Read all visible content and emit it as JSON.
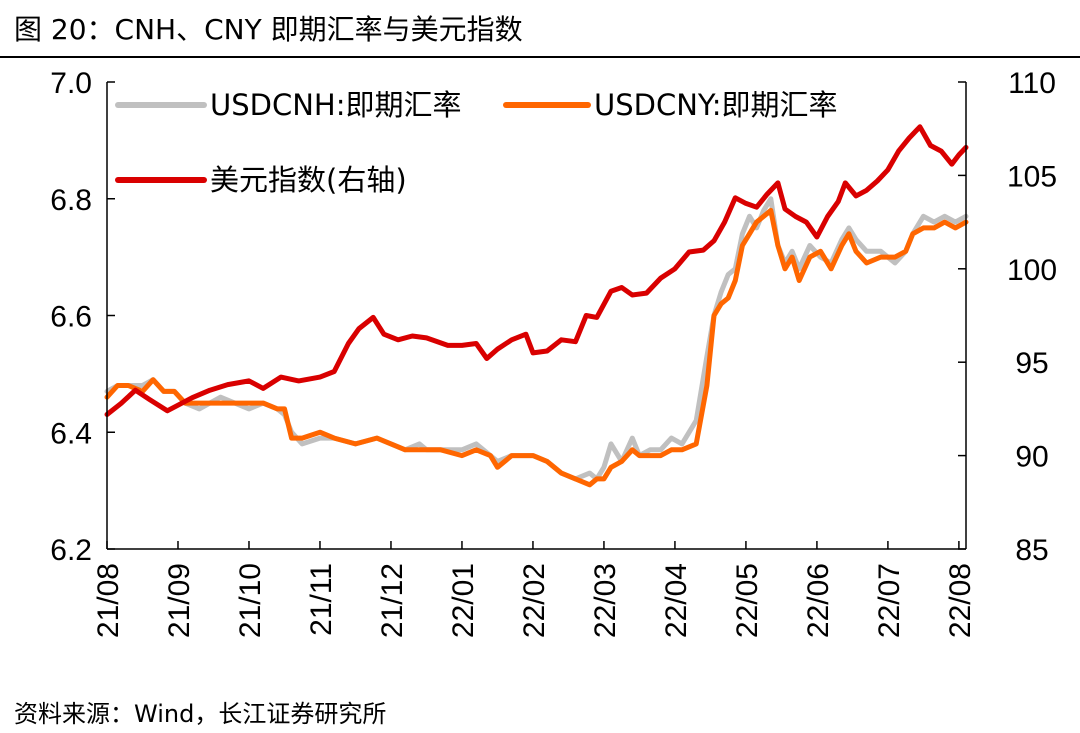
{
  "header": {
    "title": "图 20：CNH、CNY 即期汇率与美元指数"
  },
  "footer": {
    "source": "资料来源：Wind，长江证券研究所"
  },
  "colors": {
    "cnh": "#C0C0C0",
    "cny": "#FF6600",
    "dxy": "#D90000",
    "axis": "#000000"
  },
  "chart_data": {
    "type": "line",
    "title": "CNH、CNY 即期汇率与美元指数",
    "xlabel": "",
    "ylabel_left": "",
    "ylabel_right": "",
    "ylim_left": [
      6.2,
      7.0
    ],
    "ylim_right": [
      85,
      110
    ],
    "yticks_left": [
      "6.2",
      "6.4",
      "6.6",
      "6.8",
      "7.0"
    ],
    "yticks_right": [
      "85",
      "90",
      "95",
      "100",
      "105",
      "110"
    ],
    "x_range": [
      0,
      12.1
    ],
    "xtick_positions": [
      0,
      1,
      2,
      3,
      4,
      5,
      6,
      7,
      8,
      9,
      10,
      11,
      12
    ],
    "xtick_labels": [
      "21/08",
      "21/09",
      "21/10",
      "21/11",
      "21/12",
      "22/01",
      "22/02",
      "22/03",
      "22/04",
      "22/05",
      "22/06",
      "22/07",
      "22/08"
    ],
    "grid": false,
    "legend": "top-left",
    "series": [
      {
        "name": "USDCNH:即期汇率",
        "axis": "left",
        "color": "#C0C0C0",
        "x": [
          0,
          0.15,
          0.3,
          0.5,
          0.65,
          0.8,
          0.95,
          1.1,
          1.3,
          1.45,
          1.6,
          1.8,
          2.0,
          2.2,
          2.4,
          2.5,
          2.6,
          2.75,
          3.0,
          3.2,
          3.5,
          3.8,
          4.0,
          4.2,
          4.4,
          4.5,
          4.7,
          5.0,
          5.2,
          5.4,
          5.5,
          5.7,
          6.0,
          6.2,
          6.4,
          6.6,
          6.8,
          6.9,
          7.0,
          7.1,
          7.25,
          7.4,
          7.5,
          7.65,
          7.8,
          7.95,
          8.1,
          8.3,
          8.45,
          8.55,
          8.65,
          8.75,
          8.85,
          8.95,
          9.05,
          9.15,
          9.25,
          9.35,
          9.45,
          9.55,
          9.65,
          9.75,
          9.9,
          10.05,
          10.2,
          10.35,
          10.45,
          10.55,
          10.7,
          10.9,
          11.1,
          11.25,
          11.35,
          11.5,
          11.65,
          11.8,
          11.95,
          12.1
        ],
        "values": [
          6.47,
          6.48,
          6.48,
          6.48,
          6.49,
          6.47,
          6.47,
          6.45,
          6.44,
          6.45,
          6.46,
          6.45,
          6.44,
          6.45,
          6.44,
          6.43,
          6.4,
          6.38,
          6.39,
          6.39,
          6.38,
          6.39,
          6.38,
          6.37,
          6.38,
          6.37,
          6.37,
          6.37,
          6.38,
          6.36,
          6.35,
          6.36,
          6.36,
          6.35,
          6.33,
          6.32,
          6.33,
          6.32,
          6.34,
          6.38,
          6.35,
          6.39,
          6.36,
          6.37,
          6.37,
          6.39,
          6.38,
          6.42,
          6.53,
          6.6,
          6.64,
          6.67,
          6.68,
          6.74,
          6.77,
          6.75,
          6.78,
          6.8,
          6.72,
          6.69,
          6.71,
          6.68,
          6.72,
          6.7,
          6.69,
          6.73,
          6.75,
          6.73,
          6.71,
          6.71,
          6.69,
          6.71,
          6.74,
          6.77,
          6.76,
          6.77,
          6.76,
          6.77
        ]
      },
      {
        "name": "USDCNY:即期汇率",
        "axis": "left",
        "color": "#FF6600",
        "x": [
          0,
          0.15,
          0.3,
          0.5,
          0.65,
          0.8,
          0.95,
          1.1,
          1.3,
          1.45,
          1.6,
          1.8,
          2.0,
          2.2,
          2.4,
          2.5,
          2.6,
          2.75,
          3.0,
          3.2,
          3.5,
          3.8,
          4.0,
          4.2,
          4.4,
          4.5,
          4.7,
          5.0,
          5.2,
          5.4,
          5.5,
          5.7,
          6.0,
          6.2,
          6.4,
          6.6,
          6.8,
          6.9,
          7.0,
          7.1,
          7.25,
          7.4,
          7.5,
          7.65,
          7.8,
          7.95,
          8.1,
          8.3,
          8.45,
          8.55,
          8.65,
          8.75,
          8.85,
          8.95,
          9.05,
          9.15,
          9.25,
          9.35,
          9.45,
          9.55,
          9.65,
          9.75,
          9.9,
          10.05,
          10.2,
          10.35,
          10.45,
          10.55,
          10.7,
          10.9,
          11.1,
          11.25,
          11.35,
          11.5,
          11.65,
          11.8,
          11.95,
          12.1
        ],
        "values": [
          6.46,
          6.48,
          6.48,
          6.47,
          6.49,
          6.47,
          6.47,
          6.45,
          6.45,
          6.45,
          6.45,
          6.45,
          6.45,
          6.45,
          6.44,
          6.44,
          6.39,
          6.39,
          6.4,
          6.39,
          6.38,
          6.39,
          6.38,
          6.37,
          6.37,
          6.37,
          6.37,
          6.36,
          6.37,
          6.36,
          6.34,
          6.36,
          6.36,
          6.35,
          6.33,
          6.32,
          6.31,
          6.32,
          6.32,
          6.34,
          6.35,
          6.37,
          6.36,
          6.36,
          6.36,
          6.37,
          6.37,
          6.38,
          6.48,
          6.6,
          6.62,
          6.63,
          6.66,
          6.72,
          6.74,
          6.76,
          6.77,
          6.78,
          6.72,
          6.68,
          6.7,
          6.66,
          6.7,
          6.71,
          6.68,
          6.72,
          6.74,
          6.71,
          6.69,
          6.7,
          6.7,
          6.71,
          6.74,
          6.75,
          6.75,
          6.76,
          6.75,
          6.76
        ]
      },
      {
        "name": "美元指数(右轴)",
        "axis": "right",
        "color": "#D90000",
        "x": [
          0,
          0.2,
          0.4,
          0.6,
          0.85,
          1.0,
          1.2,
          1.45,
          1.7,
          2.0,
          2.2,
          2.45,
          2.7,
          3.0,
          3.2,
          3.4,
          3.55,
          3.75,
          3.9,
          4.1,
          4.3,
          4.5,
          4.8,
          5.0,
          5.2,
          5.35,
          5.5,
          5.7,
          5.9,
          6.0,
          6.2,
          6.4,
          6.6,
          6.75,
          6.9,
          7.1,
          7.25,
          7.4,
          7.6,
          7.8,
          8.0,
          8.2,
          8.4,
          8.55,
          8.7,
          8.85,
          9.0,
          9.15,
          9.3,
          9.45,
          9.55,
          9.7,
          9.85,
          10.0,
          10.15,
          10.3,
          10.4,
          10.55,
          10.7,
          10.85,
          11.0,
          11.15,
          11.3,
          11.45,
          11.6,
          11.75,
          11.9,
          12.0,
          12.1
        ],
        "values": [
          92.2,
          92.8,
          93.5,
          93.0,
          92.4,
          92.7,
          93.1,
          93.5,
          93.8,
          94.0,
          93.6,
          94.2,
          94.0,
          94.2,
          94.5,
          96.0,
          96.8,
          97.4,
          96.5,
          96.2,
          96.4,
          96.3,
          95.9,
          95.9,
          96.0,
          95.2,
          95.7,
          96.2,
          96.5,
          95.5,
          95.6,
          96.2,
          96.1,
          97.5,
          97.4,
          98.8,
          99.0,
          98.6,
          98.7,
          99.5,
          100.0,
          100.9,
          101.0,
          101.5,
          102.5,
          103.8,
          103.5,
          103.3,
          104.0,
          104.6,
          103.2,
          102.8,
          102.5,
          101.7,
          102.8,
          103.6,
          104.6,
          103.9,
          104.2,
          104.7,
          105.3,
          106.3,
          107.0,
          107.6,
          106.6,
          106.3,
          105.6,
          106.1,
          106.5
        ]
      }
    ]
  }
}
